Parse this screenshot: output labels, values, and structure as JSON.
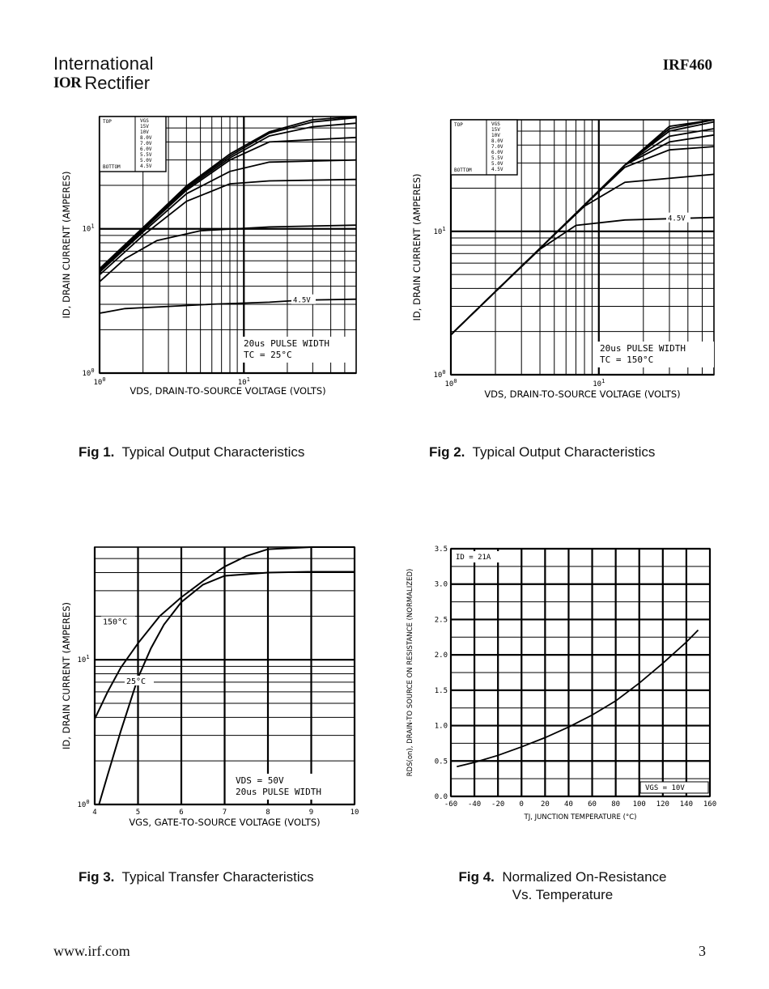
{
  "header": {
    "logo_line1": "International",
    "logo_mark": "IOR",
    "logo_line2": "Rectifier",
    "part_number": "IRF460"
  },
  "footer": {
    "url": "www.irf.com",
    "page": "3"
  },
  "captions": [
    {
      "fig": "Fig 1.",
      "text": "Typical Output Characteristics"
    },
    {
      "fig": "Fig 2.",
      "text": "Typical Output Characteristics"
    },
    {
      "fig": "Fig 3.",
      "text": "Typical Transfer Characteristics"
    },
    {
      "fig": "Fig 4.",
      "text": "Normalized On-Resistance",
      "text2": "Vs. Temperature"
    }
  ],
  "chart_data": [
    {
      "type": "line",
      "xscale": "log",
      "yscale": "log",
      "xlim": [
        1,
        60
      ],
      "ylim": [
        1,
        60
      ],
      "xlabel": "VDS, DRAIN-TO-SOURCE VOLTAGE (VOLTS)",
      "ylabel": "ID, DRAIN CURRENT (AMPERES)",
      "xticks": [
        "10^0",
        "10^1"
      ],
      "yticks": [
        "10^0",
        "10^1"
      ],
      "legend": {
        "header": "VGS",
        "top_label": "TOP",
        "bottom_label": "BOTTOM",
        "entries": [
          "15V",
          "10V",
          "8.0V",
          "7.0V",
          "6.0V",
          "5.5V",
          "5.0V",
          "4.5V"
        ]
      },
      "annotations": [
        "4.5V",
        "20us PULSE WIDTH",
        "TC = 25°C"
      ],
      "series": [
        {
          "values_x": [
            1,
            1.5,
            3,
            6,
            15,
            25,
            60
          ],
          "values_y": [
            2.6,
            2.8,
            2.9,
            3.0,
            3.1,
            3.2,
            3.25
          ]
        },
        {
          "values_x": [
            1,
            1.5,
            2.5,
            5,
            15,
            60
          ],
          "values_y": [
            4.3,
            6.2,
            8.3,
            9.7,
            10.3,
            10.6
          ]
        },
        {
          "values_x": [
            1,
            2,
            4,
            8,
            15,
            60
          ],
          "values_y": [
            4.8,
            9.0,
            15.5,
            20.5,
            21.5,
            22.0
          ]
        },
        {
          "values_x": [
            1,
            2,
            4,
            8,
            15,
            60
          ],
          "values_y": [
            5.0,
            9.5,
            17.5,
            25,
            29,
            30
          ]
        },
        {
          "values_x": [
            1,
            2,
            4,
            8,
            15,
            60
          ],
          "values_y": [
            5.1,
            9.8,
            18.5,
            30,
            40,
            43
          ]
        },
        {
          "values_x": [
            1,
            2,
            4,
            8,
            15,
            30,
            60
          ],
          "values_y": [
            5.2,
            10,
            19,
            31,
            44,
            51,
            54
          ]
        },
        {
          "values_x": [
            1,
            2,
            4,
            8,
            15,
            30,
            60
          ],
          "values_y": [
            5.2,
            10.1,
            19.5,
            32,
            46,
            55,
            59
          ]
        },
        {
          "values_x": [
            1,
            2,
            4,
            8,
            15,
            30,
            60
          ],
          "values_y": [
            5.3,
            10.2,
            19.8,
            33,
            47,
            57,
            62
          ]
        }
      ]
    },
    {
      "type": "line",
      "xscale": "log",
      "yscale": "log",
      "xlim": [
        1,
        60
      ],
      "ylim": [
        1,
        60
      ],
      "xlabel": "VDS, DRAIN-TO-SOURCE VOLTAGE (VOLTS)",
      "ylabel": "ID, DRAIN CURRENT (AMPERES)",
      "xticks": [
        "10^0",
        "10^1"
      ],
      "yticks": [
        "10^0",
        "10^1"
      ],
      "legend": {
        "header": "VGS",
        "top_label": "TOP",
        "bottom_label": "BOTTOM",
        "entries": [
          "15V",
          "10V",
          "8.0V",
          "7.0V",
          "6.0V",
          "5.5V",
          "5.0V",
          "4.5V"
        ]
      },
      "annotations": [
        "4.5V",
        "20us PULSE WIDTH",
        "TC = 150°C"
      ],
      "series": [
        {
          "values_x": [
            1,
            2,
            4,
            7,
            15,
            60
          ],
          "values_y": [
            1.9,
            3.8,
            7.5,
            11.0,
            12.0,
            12.5
          ]
        },
        {
          "values_x": [
            1,
            2,
            4,
            8,
            15,
            60
          ],
          "values_y": [
            1.9,
            3.8,
            7.6,
            15,
            22,
            25
          ]
        },
        {
          "values_x": [
            1,
            2,
            4,
            8,
            15,
            30,
            60
          ],
          "values_y": [
            1.9,
            3.8,
            7.6,
            15.2,
            28,
            37,
            39
          ]
        },
        {
          "values_x": [
            1,
            2,
            4,
            8,
            15,
            30,
            60
          ],
          "values_y": [
            1.9,
            3.8,
            7.6,
            15.2,
            29,
            42,
            47
          ]
        },
        {
          "values_x": [
            1,
            2,
            4,
            8,
            15,
            30,
            60
          ],
          "values_y": [
            1.9,
            3.8,
            7.6,
            15.2,
            29,
            46,
            52
          ]
        },
        {
          "values_x": [
            1,
            2,
            4,
            8,
            15,
            30,
            60
          ],
          "values_y": [
            1.9,
            3.8,
            7.6,
            15.3,
            29,
            50,
            58
          ]
        },
        {
          "values_x": [
            1,
            2,
            4,
            8,
            15,
            30,
            60
          ],
          "values_y": [
            1.9,
            3.8,
            7.6,
            15.3,
            29,
            52,
            62
          ]
        },
        {
          "values_x": [
            1,
            2,
            4,
            8,
            15,
            30,
            60
          ],
          "values_y": [
            1.9,
            3.8,
            7.6,
            15.3,
            29,
            54,
            64
          ]
        }
      ]
    },
    {
      "type": "line",
      "xscale": "linear",
      "yscale": "log",
      "xlim": [
        4,
        10
      ],
      "ylim": [
        1,
        60
      ],
      "xlabel": "VGS, GATE-TO-SOURCE VOLTAGE (VOLTS)",
      "ylabel": "ID, DRAIN CURRENT (AMPERES)",
      "xticks": [
        "4",
        "5",
        "6",
        "7",
        "8",
        "9",
        "10"
      ],
      "yticks": [
        "10^0",
        "10^1"
      ],
      "annotations": [
        "VDS = 50V",
        "20us PULSE WIDTH"
      ],
      "series": [
        {
          "name": "150°C",
          "values_x": [
            4,
            4.3,
            4.6,
            5,
            5.5,
            6,
            6.5,
            7,
            7.5,
            8,
            9,
            10
          ],
          "values_y": [
            3.9,
            6.0,
            8.8,
            13,
            20,
            27,
            35,
            44,
            52,
            58,
            62,
            63
          ]
        },
        {
          "name": "25°C",
          "values_x": [
            4.1,
            4.3,
            4.6,
            5,
            5.3,
            5.6,
            6,
            6.5,
            7,
            8,
            9,
            10
          ],
          "values_y": [
            1.0,
            1.6,
            3.2,
            7.5,
            12,
            17.5,
            25,
            33,
            38,
            40,
            40.5,
            40.5
          ]
        }
      ]
    },
    {
      "type": "line",
      "xscale": "linear",
      "yscale": "linear",
      "xlim": [
        -60,
        160
      ],
      "ylim": [
        0.0,
        3.5
      ],
      "xlabel": "TJ, JUNCTION TEMPERATURE (°C)",
      "ylabel": "RDS(on), DRAIN-TO SOURCE ON RESISTANCE (NORMALIZED)",
      "xticks": [
        "-60",
        "-40",
        "-20",
        "0",
        "20",
        "40",
        "60",
        "80",
        "100",
        "120",
        "140",
        "160"
      ],
      "yticks": [
        "0.0",
        "0.5",
        "1.0",
        "1.5",
        "2.0",
        "2.5",
        "3.0",
        "3.5"
      ],
      "annotations": [
        "ID = 21A",
        "VGS = 10V"
      ],
      "series": [
        {
          "values_x": [
            -55,
            -40,
            -20,
            0,
            20,
            40,
            60,
            80,
            100,
            120,
            140,
            150
          ],
          "values_y": [
            0.42,
            0.48,
            0.58,
            0.7,
            0.83,
            0.98,
            1.15,
            1.35,
            1.6,
            1.88,
            2.18,
            2.35
          ]
        }
      ]
    }
  ]
}
